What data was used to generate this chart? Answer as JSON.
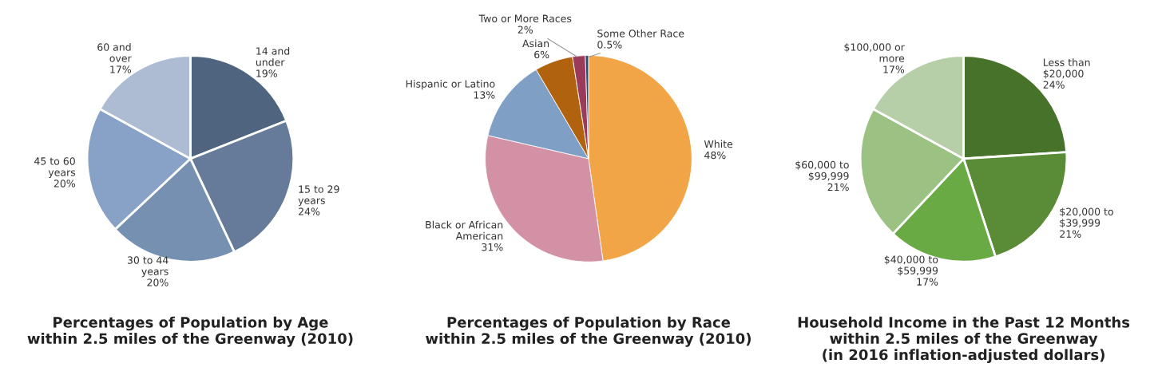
{
  "chart_data": [
    {
      "type": "pie",
      "title": "Percentages of Population by Age\nwithin 2.5 miles of the Greenway (2010)",
      "categories": [
        "14 and\nunder",
        "15 to 29\nyears",
        "30 to 44\nyears",
        "45 to 60\nyears",
        "60 and\nover"
      ],
      "values": [
        19,
        24,
        20,
        20,
        17
      ],
      "value_labels": [
        "19%",
        "24%",
        "20%",
        "20%",
        "17%"
      ],
      "colors": [
        "#4f647f",
        "#667b99",
        "#7590b0",
        "#87a2c6",
        "#adbbd3"
      ],
      "legend": false
    },
    {
      "type": "pie",
      "title": "Percentages of Population by Race\nwithin 2.5 miles of the Greenway (2010)",
      "categories": [
        "White",
        "Black or African\nAmerican",
        "Hispanic or Latino",
        "Asian",
        "Two or More Races",
        "Some Other Race"
      ],
      "values": [
        48,
        31,
        13,
        6,
        2,
        0.5
      ],
      "value_labels": [
        "48%",
        "31%",
        "13%",
        "6%",
        "2%",
        "0.5%"
      ],
      "colors": [
        "#f2a546",
        "#d291a5",
        "#809fc4",
        "#b0620e",
        "#9b3b5a",
        "#2f4a6e"
      ],
      "legend": false
    },
    {
      "type": "pie",
      "title": "Household Income in the Past 12 Months\nwithin 2.5 miles of the Greenway\n(in 2016 inflation-adjusted dollars)",
      "categories": [
        "Less than\n$20,000",
        "$20,000 to\n$39,999",
        "$40,000 to\n$59,999",
        "$60,000 to\n$99,999",
        "$100,000 or\nmore"
      ],
      "values": [
        24,
        21,
        17,
        21,
        17
      ],
      "value_labels": [
        "24%",
        "21%",
        "17%",
        "21%",
        "17%"
      ],
      "colors": [
        "#47722a",
        "#5a8c38",
        "#6aaa44",
        "#9cc283",
        "#b7cfa9"
      ],
      "legend": false
    }
  ]
}
